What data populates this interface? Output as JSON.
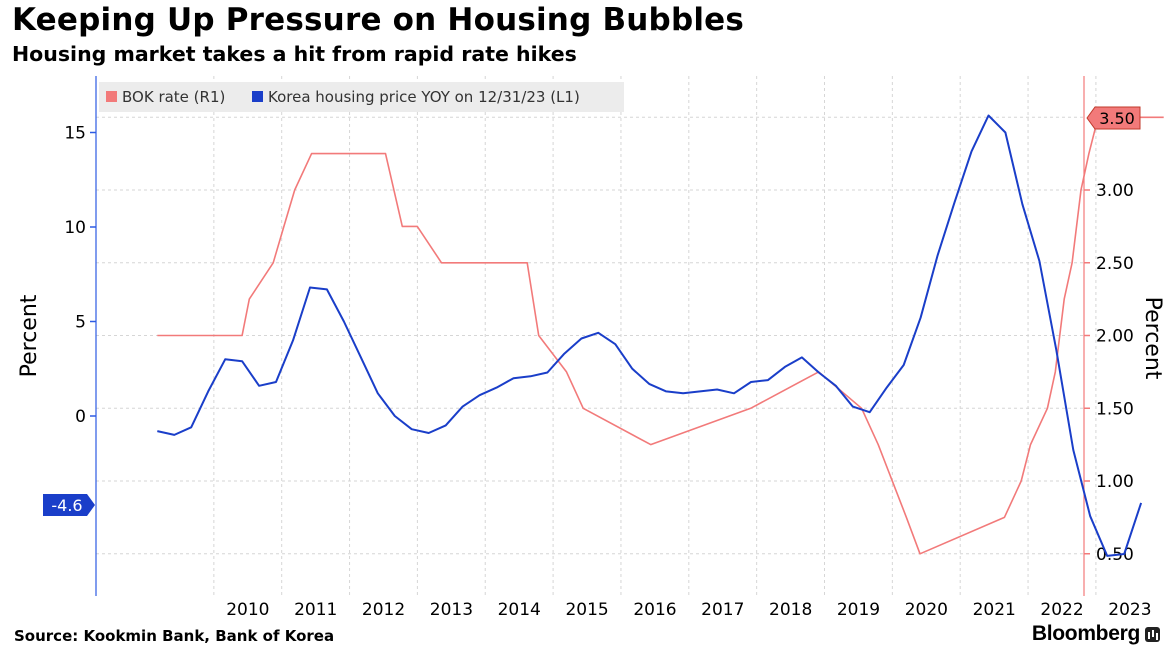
{
  "header": {
    "title": "Keeping Up Pressure on Housing Bubbles",
    "subtitle": "Housing market takes a hit from rapid rate hikes"
  },
  "footer": {
    "source": "Source: Kookmin Bank, Bank of Korea",
    "brand": "Bloomberg"
  },
  "chart_data": {
    "type": "line",
    "title": "Keeping Up Pressure on Housing Bubbles",
    "subtitle": "Housing market takes a hit from rapid rate hikes",
    "x_ticks": [
      "2010",
      "2011",
      "2012",
      "2013",
      "2014",
      "2015",
      "2016",
      "2017",
      "2018",
      "2019",
      "2020",
      "2021",
      "2022",
      "2023"
    ],
    "left_axis": {
      "label": "Percent",
      "ticks": [
        "15",
        "10",
        "5",
        "0"
      ],
      "range": [
        -9.5,
        18
      ]
    },
    "right_axis": {
      "label": "Percent",
      "ticks": [
        "3.00",
        "2.50",
        "2.00",
        "1.50",
        "1.00",
        "0.50"
      ],
      "range": [
        0.25,
        4.0
      ]
    },
    "legend": {
      "placement": "top-left",
      "entries": [
        "BOK rate (R1)",
        "Korea housing price YOY on 12/31/23 (L1)"
      ]
    },
    "end_labels": {
      "bok_rate": "3.50",
      "housing_yoy": "-4.6"
    },
    "colors": {
      "bok_rate": "#f27a7a",
      "housing_yoy": "#1a3ec9",
      "axis": "#2d5be3",
      "grid": "#d6d6d6"
    },
    "series": [
      {
        "name": "BOK rate (R1)",
        "axis": "right",
        "points": [
          [
            "2009-03-01",
            2.0
          ],
          [
            "2010-06-01",
            2.0
          ],
          [
            "2010-07-09",
            2.25
          ],
          [
            "2010-11-16",
            2.5
          ],
          [
            "2011-01-13",
            2.75
          ],
          [
            "2011-03-10",
            3.0
          ],
          [
            "2011-06-10",
            3.25
          ],
          [
            "2012-07-12",
            3.25
          ],
          [
            "2012-10-11",
            2.75
          ],
          [
            "2012-12-31",
            2.75
          ],
          [
            "2013-05-09",
            2.5
          ],
          [
            "2014-08-14",
            2.5
          ],
          [
            "2014-10-15",
            2.0
          ],
          [
            "2015-03-12",
            1.75
          ],
          [
            "2015-06-11",
            1.5
          ],
          [
            "2016-06-09",
            1.25
          ],
          [
            "2017-11-30",
            1.5
          ],
          [
            "2018-11-30",
            1.75
          ],
          [
            "2019-07-18",
            1.5
          ],
          [
            "2019-10-16",
            1.25
          ],
          [
            "2020-03-16",
            0.75
          ],
          [
            "2020-05-28",
            0.5
          ],
          [
            "2021-08-26",
            0.75
          ],
          [
            "2021-11-25",
            1.0
          ],
          [
            "2022-01-14",
            1.25
          ],
          [
            "2022-04-14",
            1.5
          ],
          [
            "2022-05-26",
            1.75
          ],
          [
            "2022-07-13",
            2.25
          ],
          [
            "2022-08-25",
            2.5
          ],
          [
            "2022-10-12",
            3.0
          ],
          [
            "2022-11-24",
            3.25
          ],
          [
            "2023-01-13",
            3.5
          ],
          [
            "2023-12-31",
            3.5
          ]
        ]
      },
      {
        "name": "Korea housing price YOY on 12/31/23 (L1)",
        "axis": "left",
        "points": [
          [
            "2009-03-01",
            -0.8
          ],
          [
            "2009-06-01",
            -1.0
          ],
          [
            "2009-09-01",
            -0.6
          ],
          [
            "2009-12-01",
            1.3
          ],
          [
            "2010-03-01",
            3.0
          ],
          [
            "2010-06-01",
            2.9
          ],
          [
            "2010-09-01",
            1.6
          ],
          [
            "2010-12-01",
            1.8
          ],
          [
            "2011-03-01",
            4.0
          ],
          [
            "2011-06-01",
            6.8
          ],
          [
            "2011-09-01",
            6.7
          ],
          [
            "2011-12-01",
            5.0
          ],
          [
            "2012-03-01",
            3.1
          ],
          [
            "2012-06-01",
            1.2
          ],
          [
            "2012-09-01",
            0.0
          ],
          [
            "2012-12-01",
            -0.7
          ],
          [
            "2013-03-01",
            -0.9
          ],
          [
            "2013-06-01",
            -0.5
          ],
          [
            "2013-09-01",
            0.5
          ],
          [
            "2013-12-01",
            1.1
          ],
          [
            "2014-03-01",
            1.5
          ],
          [
            "2014-06-01",
            2.0
          ],
          [
            "2014-09-01",
            2.1
          ],
          [
            "2014-12-01",
            2.3
          ],
          [
            "2015-03-01",
            3.3
          ],
          [
            "2015-06-01",
            4.1
          ],
          [
            "2015-09-01",
            4.4
          ],
          [
            "2015-12-01",
            3.8
          ],
          [
            "2016-03-01",
            2.5
          ],
          [
            "2016-06-01",
            1.7
          ],
          [
            "2016-09-01",
            1.3
          ],
          [
            "2016-12-01",
            1.2
          ],
          [
            "2017-03-01",
            1.3
          ],
          [
            "2017-06-01",
            1.4
          ],
          [
            "2017-09-01",
            1.2
          ],
          [
            "2017-12-01",
            1.8
          ],
          [
            "2018-03-01",
            1.9
          ],
          [
            "2018-06-01",
            2.6
          ],
          [
            "2018-09-01",
            3.1
          ],
          [
            "2018-12-01",
            2.3
          ],
          [
            "2019-03-01",
            1.6
          ],
          [
            "2019-06-01",
            0.5
          ],
          [
            "2019-09-01",
            0.2
          ],
          [
            "2019-12-01",
            1.5
          ],
          [
            "2020-03-01",
            2.7
          ],
          [
            "2020-06-01",
            5.2
          ],
          [
            "2020-09-01",
            8.5
          ],
          [
            "2020-12-01",
            11.3
          ],
          [
            "2021-03-01",
            14.0
          ],
          [
            "2021-06-01",
            15.9
          ],
          [
            "2021-09-01",
            15.0
          ],
          [
            "2021-12-01",
            11.2
          ],
          [
            "2022-03-01",
            8.2
          ],
          [
            "2022-06-01",
            3.5
          ],
          [
            "2022-09-01",
            -1.8
          ],
          [
            "2022-12-01",
            -5.3
          ],
          [
            "2023-03-01",
            -7.4
          ],
          [
            "2023-06-01",
            -7.3
          ],
          [
            "2023-09-01",
            -4.6
          ]
        ]
      }
    ]
  }
}
